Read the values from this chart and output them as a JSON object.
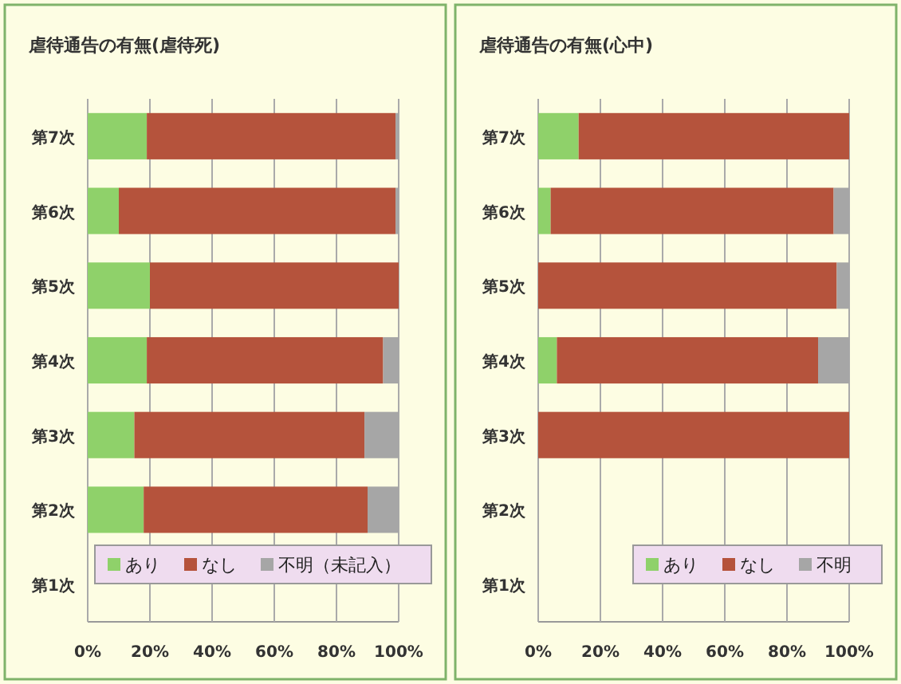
{
  "chart_data": [
    {
      "type": "bar",
      "orientation": "horizontal",
      "stacked": true,
      "title": "虐待通告の有無(虐待死)",
      "categories": [
        "第7次",
        "第6次",
        "第5次",
        "第4次",
        "第3次",
        "第2次",
        "第1次"
      ],
      "series": [
        {
          "name": "あり",
          "color": "#8fd16a",
          "values": [
            19,
            10,
            20,
            19,
            15,
            18,
            null
          ]
        },
        {
          "name": "なし",
          "color": "#b5533c",
          "values": [
            80,
            89,
            80,
            76,
            74,
            72,
            null
          ]
        },
        {
          "name": "不明（未記入）",
          "color": "#a6a6a6",
          "values": [
            1,
            1,
            0,
            5,
            11,
            10,
            null
          ]
        }
      ],
      "xlim": [
        0,
        100
      ],
      "xticks": [
        {
          "value": 0,
          "label": "0%"
        },
        {
          "value": 20,
          "label": "20%"
        },
        {
          "value": 40,
          "label": "40%"
        },
        {
          "value": 60,
          "label": "60%"
        },
        {
          "value": 80,
          "label": "80%"
        },
        {
          "value": 100,
          "label": "100%"
        }
      ],
      "grid": "x",
      "legend": "bottom right"
    },
    {
      "type": "bar",
      "orientation": "horizontal",
      "stacked": true,
      "title": "虐待通告の有無(心中)",
      "categories": [
        "第7次",
        "第6次",
        "第5次",
        "第4次",
        "第3次",
        "第2次",
        "第1次"
      ],
      "series": [
        {
          "name": "あり",
          "color": "#8fd16a",
          "values": [
            13,
            4,
            0,
            6,
            0,
            null,
            null
          ]
        },
        {
          "name": "なし",
          "color": "#b5533c",
          "values": [
            87,
            91,
            96,
            84,
            100,
            null,
            null
          ]
        },
        {
          "name": "不明",
          "color": "#a6a6a6",
          "values": [
            0,
            5,
            4,
            10,
            0,
            null,
            null
          ]
        }
      ],
      "xlim": [
        0,
        100
      ],
      "xticks": [
        {
          "value": 0,
          "label": "0%"
        },
        {
          "value": 20,
          "label": "20%"
        },
        {
          "value": 40,
          "label": "40%"
        },
        {
          "value": 60,
          "label": "60%"
        },
        {
          "value": 80,
          "label": "80%"
        },
        {
          "value": 100,
          "label": "100%"
        }
      ],
      "grid": "x",
      "legend": "bottom right"
    }
  ]
}
